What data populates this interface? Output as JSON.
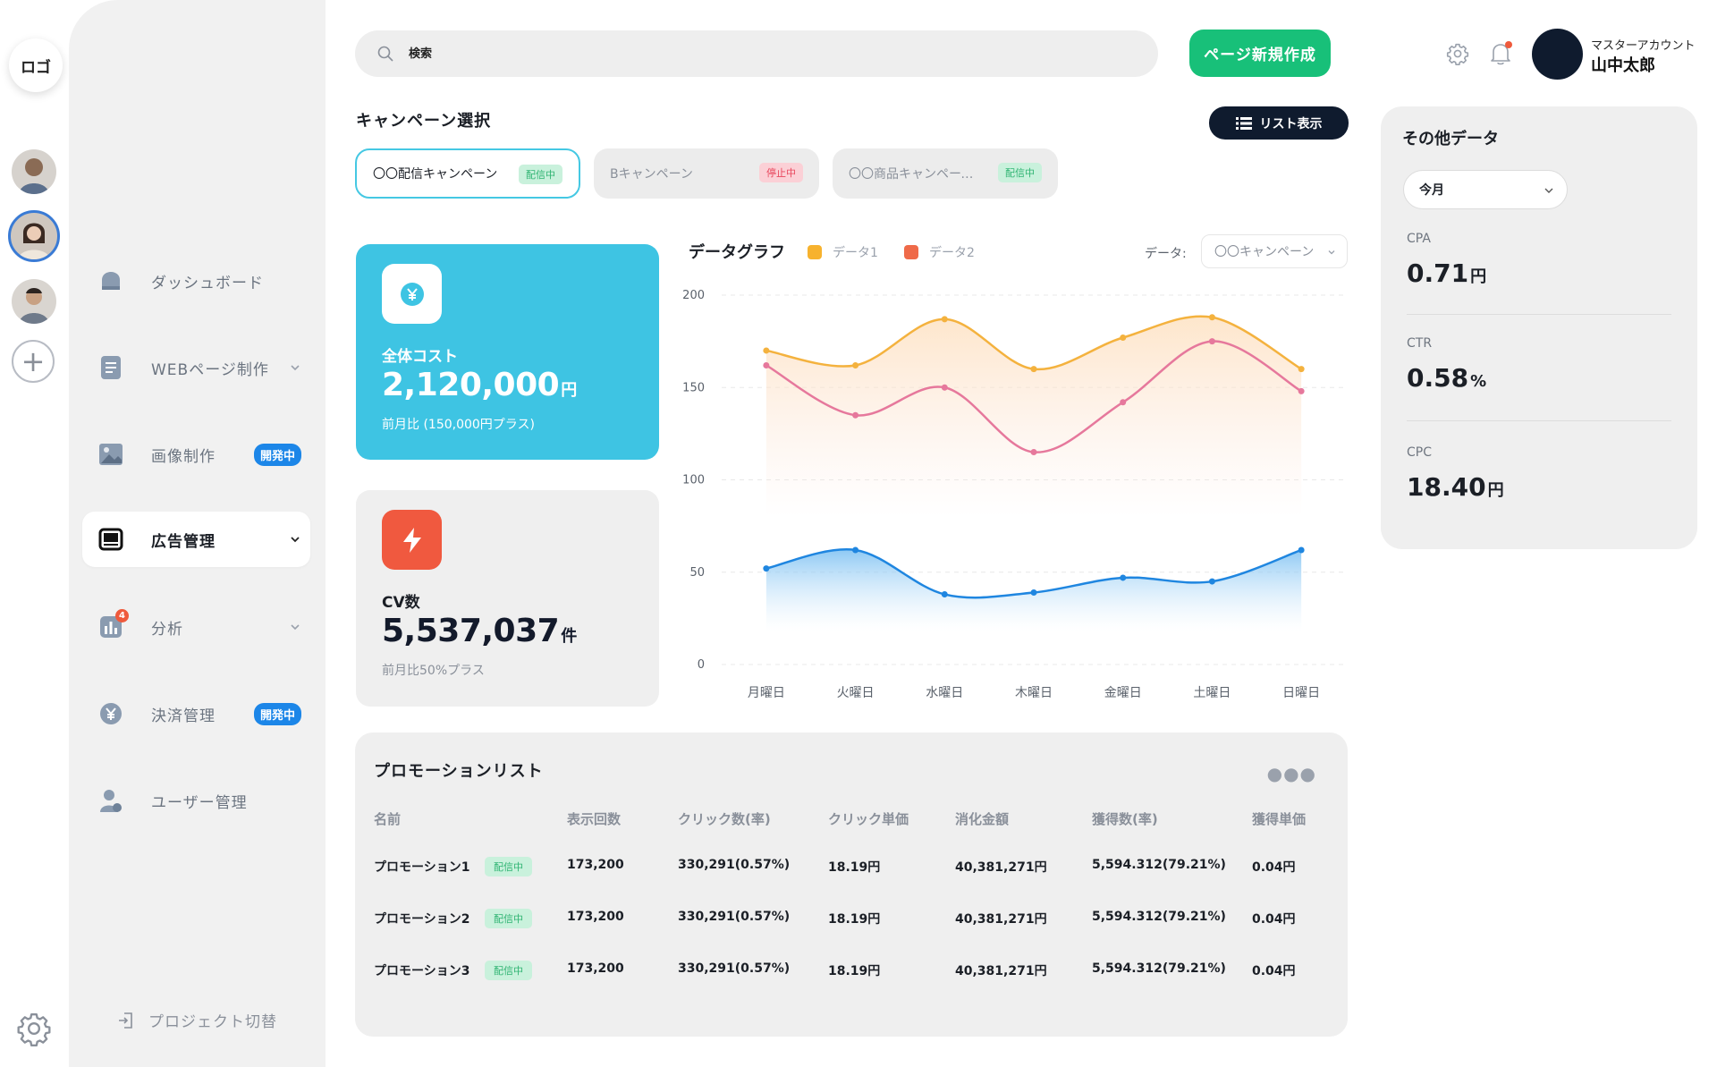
{
  "rail": {
    "logo": "ロゴ",
    "icons": [
      "avatar",
      "avatar",
      "avatar",
      "plus-icon",
      "gear-icon"
    ]
  },
  "sidebar": {
    "items": [
      {
        "label": "ダッシュボード",
        "icon": "home-icon"
      },
      {
        "label": "WEBページ制作",
        "icon": "document-icon"
      },
      {
        "label": "画像制作",
        "icon": "image-icon",
        "badge": "開発中"
      },
      {
        "label": "広告管理",
        "icon": "monitor-icon",
        "active": true
      },
      {
        "label": "分析",
        "icon": "bar-chart-icon",
        "badge_count": "4"
      },
      {
        "label": "決済管理",
        "icon": "yen-icon",
        "badge": "開発中"
      },
      {
        "label": "ユーザー管理",
        "icon": "user-icon"
      }
    ],
    "project_switch": "プロジェクト切替"
  },
  "header": {
    "search_placeholder": "検索",
    "new_page_label": "ページ新規作成",
    "account_role": "マスターアカウント",
    "account_name": "山中太郎"
  },
  "campaign": {
    "title": "キャンペーン選択",
    "list_view_label": "リスト表示",
    "tabs": [
      {
        "label": "〇〇配信キャンペーン",
        "status": "配信中",
        "active": true
      },
      {
        "label": "Bキャンペーン",
        "status": "停止中"
      },
      {
        "label": "〇〇商品キャンペーン…",
        "status": "配信中"
      }
    ]
  },
  "kpi": {
    "cost_icon": "yen-icon",
    "cost_label": "全体コスト",
    "cost_value": "2,120,000",
    "cost_unit": "円",
    "cost_sub": "前月比 (150,000円プラス)",
    "cv_icon": "lightning-icon",
    "cv_label": "CV数",
    "cv_value": "5,537,037",
    "cv_unit": "件",
    "cv_sub": "前月比50%プラス"
  },
  "chart": {
    "title": "データグラフ",
    "select_label": "データ:",
    "select_value": "〇〇キャンペーン"
  },
  "chart_data": {
    "type": "line",
    "categories": [
      "月曜日",
      "火曜日",
      "水曜日",
      "木曜日",
      "金曜日",
      "土曜日",
      "日曜日"
    ],
    "yticks": [
      0,
      50,
      100,
      150,
      200
    ],
    "ylim": [
      0,
      200
    ],
    "colors": {
      "data1": "#f4b23e",
      "data2": "#e6789c",
      "data3": "#1f86e0"
    },
    "series": [
      {
        "name": "データ1",
        "legend_color": "#f7b22e",
        "values": [
          170,
          162,
          187,
          160,
          177,
          188,
          160
        ]
      },
      {
        "name": "データ2",
        "legend_color": "#ef6a49",
        "values": [
          162,
          135,
          150,
          115,
          142,
          175,
          148
        ]
      },
      {
        "name": "",
        "values": [
          52,
          62,
          38,
          39,
          47,
          45,
          62
        ]
      }
    ]
  },
  "promotions": {
    "title": "プロモーションリスト",
    "headers": [
      "名前",
      "表示回数",
      "クリック数(率)",
      "クリック単価",
      "消化金額",
      "獲得数(率)",
      "獲得単価"
    ],
    "rows": [
      {
        "name": "プロモーション1",
        "status": "配信中",
        "impressions": "173,200",
        "clicks": "330,291(0.57%)",
        "cpc": "18.19円",
        "spend": "40,381,271円",
        "conversions": "5,594.312(79.21%)",
        "cpa": "0.04円"
      },
      {
        "name": "プロモーション2",
        "status": "配信中",
        "impressions": "173,200",
        "clicks": "330,291(0.57%)",
        "cpc": "18.19円",
        "spend": "40,381,271円",
        "conversions": "5,594.312(79.21%)",
        "cpa": "0.04円"
      },
      {
        "name": "プロモーション3",
        "status": "配信中",
        "impressions": "173,200",
        "clicks": "330,291(0.57%)",
        "cpc": "18.19円",
        "spend": "40,381,271円",
        "conversions": "5,594.312(79.21%)",
        "cpa": "0.04円"
      }
    ]
  },
  "other": {
    "title": "その他データ",
    "period": "今月",
    "metrics": [
      {
        "label": "CPA",
        "value": "0.71",
        "unit": "円"
      },
      {
        "label": "CTR",
        "value": "0.58",
        "unit": "%"
      },
      {
        "label": "CPC",
        "value": "18.40",
        "unit": "円"
      }
    ]
  }
}
